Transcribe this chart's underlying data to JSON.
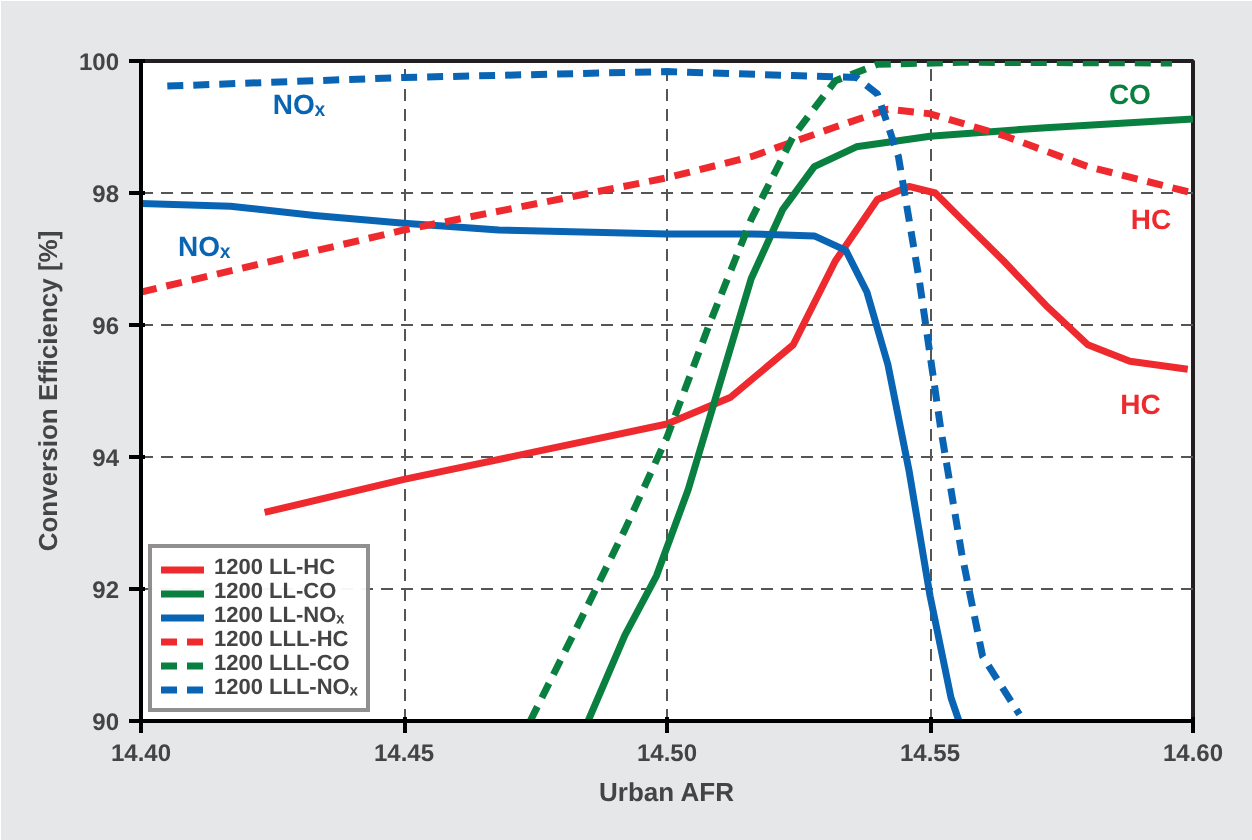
{
  "chart_data": {
    "type": "line",
    "xlabel": "Urban AFR",
    "ylabel": "Conversion Efficiency [%]",
    "xlim": [
      14.4,
      14.6
    ],
    "ylim": [
      90,
      100
    ],
    "xticks": [
      {
        "value": 14.4,
        "label": "14.40"
      },
      {
        "value": 14.45,
        "label": "14.45"
      },
      {
        "value": 14.5,
        "label": "14.50"
      },
      {
        "value": 14.55,
        "label": "14.55"
      },
      {
        "value": 14.6,
        "label": "14.60"
      }
    ],
    "yticks": [
      90,
      92,
      94,
      96,
      98,
      100
    ],
    "grid": true,
    "legend": "bottom left",
    "series": [
      {
        "name": "1200 LL-HC",
        "color": "#ee2a2e",
        "line_style": "solid",
        "x": [
          14.4235,
          14.45,
          14.5,
          14.512,
          14.524,
          14.532,
          14.54,
          14.546,
          14.551,
          14.556,
          14.564,
          14.572,
          14.58,
          14.588,
          14.599
        ],
        "values": [
          93.16,
          93.66,
          94.5,
          94.9,
          95.7,
          96.97,
          97.9,
          98.1,
          98.0,
          97.6,
          96.97,
          96.3,
          95.7,
          95.45,
          95.33
        ]
      },
      {
        "name": "1200 LL-CO",
        "color": "#0a8040",
        "line_style": "solid",
        "x": [
          14.485,
          14.492,
          14.498,
          14.504,
          14.51,
          14.516,
          14.522,
          14.528,
          14.536,
          14.55,
          14.572,
          14.6
        ],
        "values": [
          90.0,
          91.3,
          92.2,
          93.5,
          95.1,
          96.7,
          97.75,
          98.4,
          98.7,
          98.86,
          98.99,
          99.12
        ]
      },
      {
        "name": "1200 LL-NOₓ",
        "color": "#0a64b4",
        "line_style": "solid",
        "x": [
          14.4,
          14.417,
          14.433,
          14.45,
          14.468,
          14.5,
          14.516,
          14.528,
          14.534,
          14.538,
          14.542,
          14.546,
          14.55,
          14.554,
          14.5555
        ],
        "values": [
          97.84,
          97.8,
          97.66,
          97.54,
          97.44,
          97.38,
          97.38,
          97.35,
          97.13,
          96.5,
          95.4,
          93.8,
          91.9,
          90.35,
          90.0
        ]
      },
      {
        "name": "1200 LLL-HC",
        "color": "#ee2a2e",
        "line_style": "dashed",
        "x": [
          14.4,
          14.45,
          14.5,
          14.516,
          14.532,
          14.542,
          14.55,
          14.564,
          14.58,
          14.6
        ],
        "values": [
          96.5,
          97.44,
          98.23,
          98.55,
          99.0,
          99.27,
          99.2,
          98.87,
          98.4,
          98.0
        ]
      },
      {
        "name": "1200 LLL-CO",
        "color": "#0a8040",
        "line_style": "dashed",
        "x": [
          14.474,
          14.484,
          14.492,
          14.5,
          14.508,
          14.516,
          14.524,
          14.532,
          14.54,
          14.556,
          14.596
        ],
        "values": [
          90.0,
          91.6,
          92.9,
          94.3,
          96.0,
          97.6,
          98.86,
          99.7,
          99.95,
          99.98,
          99.97
        ]
      },
      {
        "name": "1200 LLL-NOₓ",
        "color": "#0a64b4",
        "line_style": "dashed",
        "x": [
          14.405,
          14.45,
          14.5,
          14.524,
          14.536,
          14.54,
          14.544,
          14.548,
          14.552,
          14.556,
          14.56,
          14.567
        ],
        "values": [
          99.62,
          99.75,
          99.84,
          99.78,
          99.75,
          99.5,
          98.55,
          96.66,
          94.45,
          92.55,
          90.98,
          90.1
        ]
      }
    ],
    "annotations": [
      "NOₓ",
      "NOₓ",
      "CO",
      "HC",
      "HC"
    ]
  }
}
